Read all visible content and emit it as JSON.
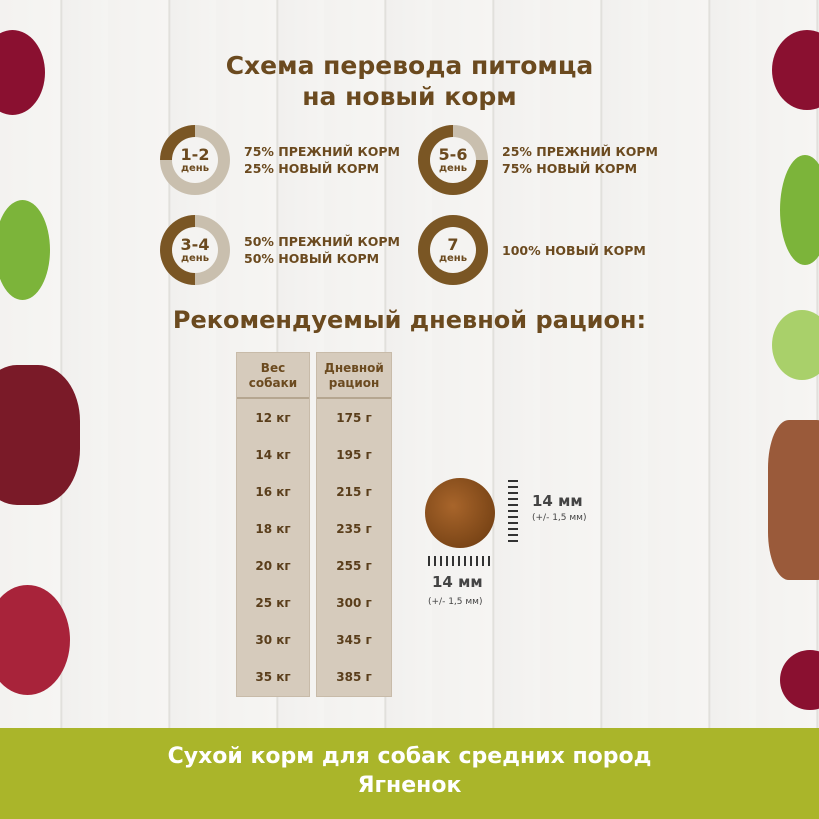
{
  "title": {
    "line1": "Схема перевода питомца",
    "line2": "на новый корм"
  },
  "colors": {
    "brown": "#6b4a1f",
    "ring_dark": "#7a5624",
    "ring_light": "#c9bfae",
    "band": "#aab52a"
  },
  "steps": [
    {
      "days": "1-2",
      "unit": "день",
      "new_percent": 25,
      "line1": "75% ПРЕЖНИЙ КОРМ",
      "line2": "25% НОВЫЙ КОРМ"
    },
    {
      "days": "5-6",
      "unit": "день",
      "new_percent": 75,
      "line1": "25% ПРЕЖНИЙ КОРМ",
      "line2": "75% НОВЫЙ КОРМ"
    },
    {
      "days": "3-4",
      "unit": "день",
      "new_percent": 50,
      "line1": "50% ПРЕЖНИЙ КОРМ",
      "line2": "50% НОВЫЙ КОРМ"
    },
    {
      "days": "7",
      "unit": "день",
      "new_percent": 100,
      "line1": "100% НОВЫЙ КОРМ",
      "line2": ""
    }
  ],
  "ration": {
    "title": "Рекомендуемый дневной рацион:",
    "col1": {
      "line1": "Вес",
      "line2": "собаки"
    },
    "col2": {
      "line1": "Дневной",
      "line2": "рацион"
    },
    "weights": [
      "12 кг",
      "14 кг",
      "16 кг",
      "18 кг",
      "20 кг",
      "25 кг",
      "30 кг",
      "35 кг"
    ],
    "amounts": [
      "175 г",
      "195 г",
      "215 г",
      "235 г",
      "255 г",
      "300 г",
      "345 г",
      "385 г"
    ]
  },
  "kibble": {
    "height": "14 мм",
    "height_tol": "(+/- 1,5 мм)",
    "width": "14 мм",
    "width_tol": "(+/- 1,5 мм)"
  },
  "footer": {
    "line1": "Сухой корм для собак средних пород",
    "line2": "Ягненок"
  }
}
